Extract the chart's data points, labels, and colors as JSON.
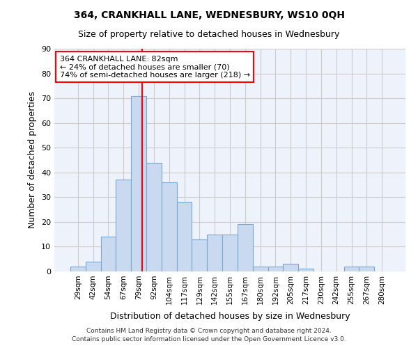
{
  "title1": "364, CRANKHALL LANE, WEDNESBURY, WS10 0QH",
  "title2": "Size of property relative to detached houses in Wednesbury",
  "xlabel": "Distribution of detached houses by size in Wednesbury",
  "ylabel": "Number of detached properties",
  "categories": [
    "29sqm",
    "42sqm",
    "54sqm",
    "67sqm",
    "79sqm",
    "92sqm",
    "104sqm",
    "117sqm",
    "129sqm",
    "142sqm",
    "155sqm",
    "167sqm",
    "180sqm",
    "192sqm",
    "205sqm",
    "217sqm",
    "230sqm",
    "242sqm",
    "255sqm",
    "267sqm",
    "280sqm"
  ],
  "values": [
    2,
    4,
    14,
    37,
    71,
    44,
    36,
    28,
    13,
    15,
    15,
    19,
    2,
    2,
    3,
    1,
    0,
    0,
    2,
    2,
    0
  ],
  "bar_color": "#c9d9f0",
  "bar_edge_color": "#7aa8d0",
  "bar_width": 1.0,
  "vline_color": "red",
  "annotation_text": "364 CRANKHALL LANE: 82sqm\n← 24% of detached houses are smaller (70)\n74% of semi-detached houses are larger (218) →",
  "annotation_box_color": "white",
  "annotation_box_edge_color": "red",
  "ylim": [
    0,
    90
  ],
  "yticks": [
    0,
    10,
    20,
    30,
    40,
    50,
    60,
    70,
    80,
    90
  ],
  "grid_color": "#cccccc",
  "background_color": "#eef2fb",
  "footer1": "Contains HM Land Registry data © Crown copyright and database right 2024.",
  "footer2": "Contains public sector information licensed under the Open Government Licence v3.0."
}
